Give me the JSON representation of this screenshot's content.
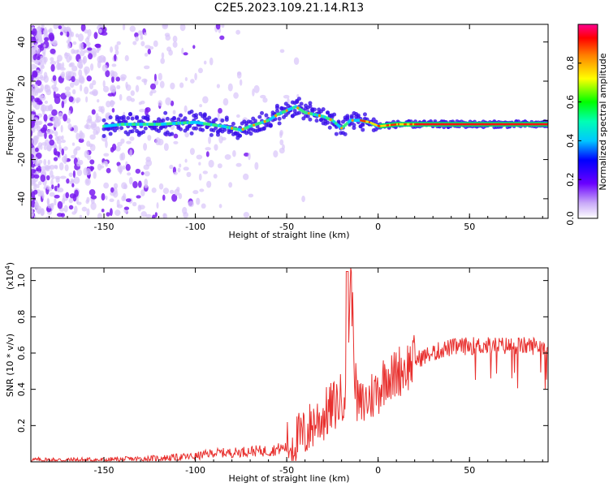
{
  "title": "C2E5.2023.109.21.14.R13",
  "colors": {
    "snr_line": "#e8302e",
    "background": "#ffffff",
    "axis": "#000000"
  },
  "chart_data": [
    {
      "type": "heatmap",
      "xlabel": "Height of straight line (km)",
      "ylabel": "Frequency (Hz)",
      "xlim": [
        -190,
        93
      ],
      "ylim": [
        -50,
        49
      ],
      "xticks": [
        -150,
        -100,
        -50,
        0,
        50
      ],
      "yticks": [
        -40,
        -20,
        0,
        20,
        40
      ],
      "colorbar": {
        "label": "Normalized spectral amplitude",
        "range": [
          0,
          1
        ],
        "ticks": [
          "0.0",
          "0.2",
          "0.4",
          "0.6",
          "0.8"
        ],
        "ticks_values": [
          0,
          0.2,
          0.4,
          0.6,
          0.8
        ]
      },
      "ridge": {
        "x": [
          -150,
          -140,
          -120,
          -100,
          -85,
          -75,
          -70,
          -60,
          -55,
          -50,
          -45,
          -40,
          -35,
          -30,
          -25,
          -20,
          -15,
          -10,
          -5,
          0,
          10,
          20,
          40,
          60,
          80,
          93
        ],
        "freq": [
          -3,
          -2,
          -2,
          -1,
          -3,
          -5,
          -3,
          0,
          3,
          5,
          7,
          4,
          3,
          2,
          0,
          -4,
          0,
          0,
          -1,
          -3,
          -2,
          -2,
          -2,
          -2,
          -2,
          -2
        ]
      }
    },
    {
      "type": "line",
      "xlabel": "Height of straight line (km)",
      "ylabel": "SNR (10 * v/v)",
      "y_multiplier": "(x10",
      "y_multiplier_exponent": "4",
      "y_multiplier_close": ")",
      "xlim": [
        -190,
        93
      ],
      "ylim": [
        0,
        1.07
      ],
      "xticks": [
        -150,
        -100,
        -50,
        0,
        50
      ],
      "yticks": [
        0.2,
        0.4,
        0.6,
        0.8,
        1.0
      ],
      "ytick_labels": [
        "0.2",
        "0.4",
        "0.6",
        "0.8",
        "1.0"
      ],
      "series": [
        {
          "x": [
            -190,
            -150,
            -120,
            -100,
            -90,
            -80,
            -70,
            -60,
            -50,
            -45,
            -40,
            -35,
            -30,
            -25,
            -20,
            -17,
            -15,
            -12,
            -10,
            -5,
            0,
            3,
            5,
            8,
            10,
            15,
            20,
            25,
            30,
            35,
            40,
            50,
            60,
            70,
            80,
            93
          ],
          "y": [
            0.01,
            0.01,
            0.02,
            0.03,
            0.05,
            0.05,
            0.06,
            0.06,
            0.08,
            0.12,
            0.15,
            0.22,
            0.25,
            0.3,
            0.35,
            0.45,
            1.05,
            0.35,
            0.3,
            0.35,
            0.4,
            0.45,
            0.5,
            0.45,
            0.5,
            0.52,
            0.56,
            0.58,
            0.6,
            0.62,
            0.63,
            0.64,
            0.64,
            0.64,
            0.64,
            0.64
          ]
        }
      ]
    }
  ]
}
